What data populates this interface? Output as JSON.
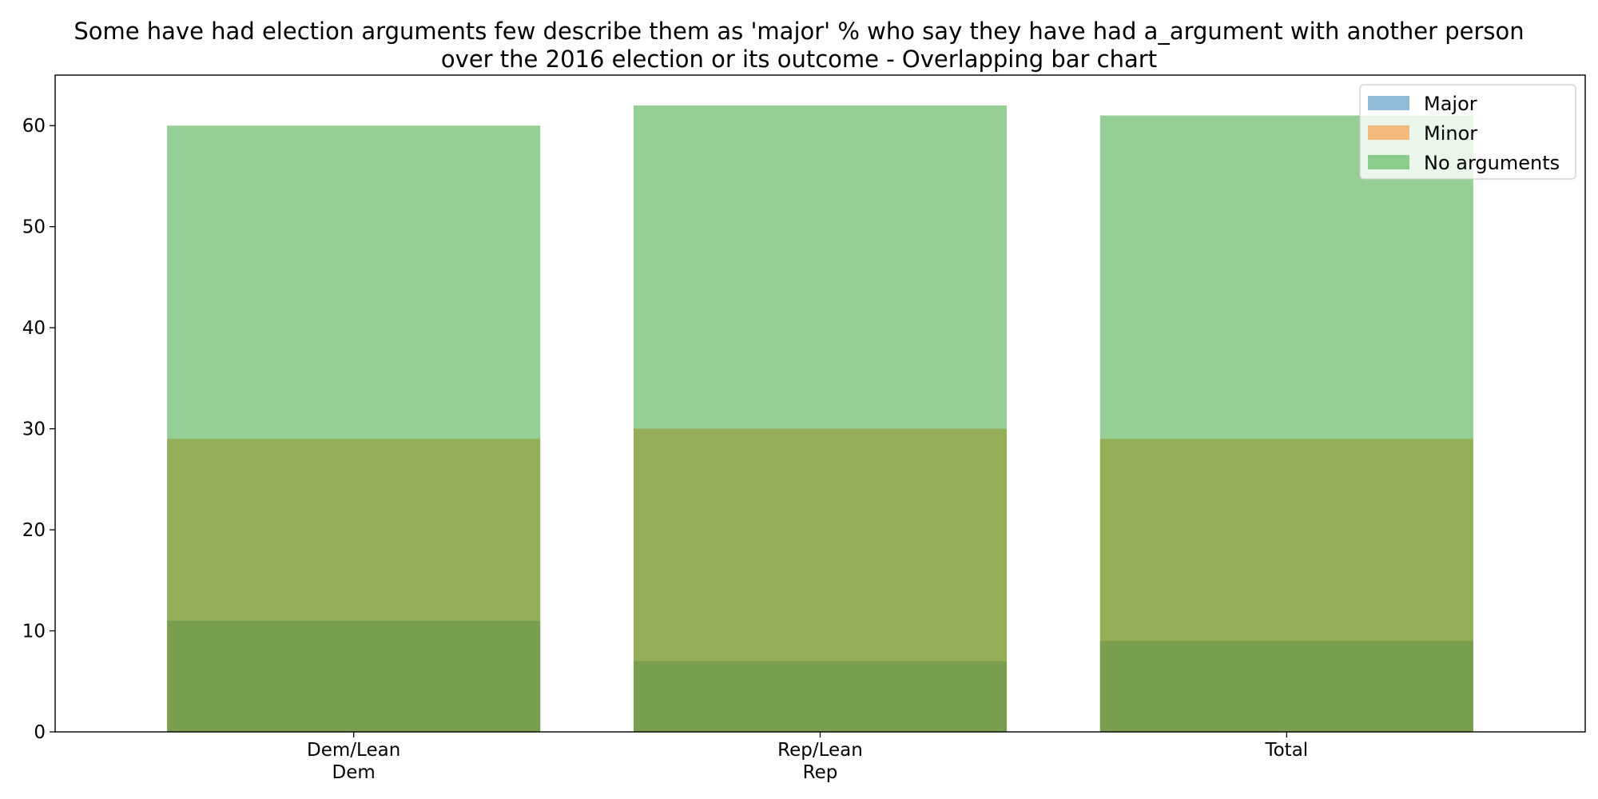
{
  "chart_data": {
    "type": "bar",
    "title_lines": [
      "Some have had election arguments few describe them as 'major' % who say they have had a_argument with another person",
      "over the 2016 election or its outcome  - Overlapping bar chart"
    ],
    "categories": [
      [
        "Dem/Lean",
        "Dem"
      ],
      [
        "Rep/Lean",
        "Rep"
      ],
      [
        "Total"
      ]
    ],
    "series": [
      {
        "name": "Major",
        "values": [
          11,
          7,
          9
        ],
        "color": "#1f77b4"
      },
      {
        "name": "Minor",
        "values": [
          29,
          30,
          29
        ],
        "color": "#ff7f0e"
      },
      {
        "name": "No arguments",
        "values": [
          60,
          62,
          61
        ],
        "color": "#2ca02c"
      }
    ],
    "bar_opacity": 0.5,
    "overlapping": true,
    "ylim": [
      0,
      65
    ],
    "yticks": [
      0,
      10,
      20,
      30,
      40,
      50,
      60
    ],
    "grid": false,
    "legend_position": "top-right"
  }
}
